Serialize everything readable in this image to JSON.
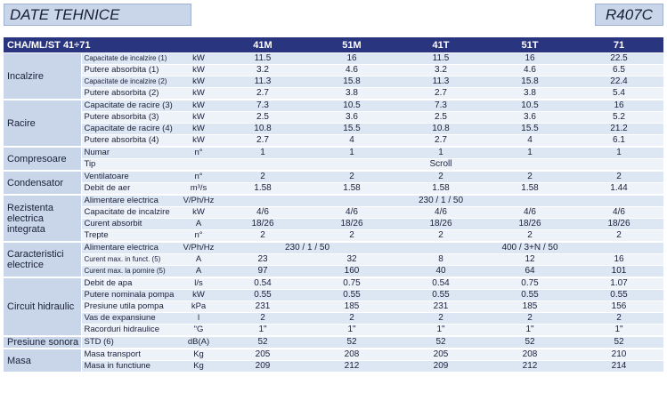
{
  "header": {
    "title": "DATE TEHNICE",
    "refrigerant": "R407C"
  },
  "table": {
    "model_label": "CHA/ML/ST 41÷71",
    "columns": [
      "41M",
      "51M",
      "41T",
      "51T",
      "71"
    ],
    "groups": [
      {
        "name": "Incalzire",
        "rows": [
          {
            "param": "Capacitate de incalzire (1)",
            "small": true,
            "unit": "kW",
            "values": [
              "11.5",
              "16",
              "11.5",
              "16",
              "22.5"
            ]
          },
          {
            "param": "Putere absorbita (1)",
            "unit": "kW",
            "values": [
              "3.2",
              "4.6",
              "3.2",
              "4.6",
              "6.5"
            ]
          },
          {
            "param": "Capacitate de incalzire (2)",
            "small": true,
            "unit": "kW",
            "values": [
              "11.3",
              "15.8",
              "11.3",
              "15.8",
              "22.4"
            ]
          },
          {
            "param": "Putere absorbita (2)",
            "unit": "kW",
            "values": [
              "2.7",
              "3.8",
              "2.7",
              "3.8",
              "5.4"
            ]
          }
        ]
      },
      {
        "name": "Racire",
        "rows": [
          {
            "param": "Capacitate de racire (3)",
            "unit": "kW",
            "values": [
              "7.3",
              "10.5",
              "7.3",
              "10.5",
              "16"
            ]
          },
          {
            "param": "Putere absorbita (3)",
            "unit": "kW",
            "values": [
              "2.5",
              "3.6",
              "2.5",
              "3.6",
              "5.2"
            ]
          },
          {
            "param": "Capacitate de racire (4)",
            "unit": "kW",
            "values": [
              "10.8",
              "15.5",
              "10.8",
              "15.5",
              "21.2"
            ]
          },
          {
            "param": "Putere absorbita (4)",
            "unit": "kW",
            "values": [
              "2.7",
              "4",
              "2.7",
              "4",
              "6.1"
            ]
          }
        ]
      },
      {
        "name": "Compresoare",
        "rows": [
          {
            "param": "Numar",
            "unit": "n°",
            "values": [
              "1",
              "1",
              "1",
              "1",
              "1"
            ]
          },
          {
            "param": "Tip",
            "unit": "",
            "spans": [
              {
                "text": "Scroll",
                "colspan": 5
              }
            ]
          }
        ]
      },
      {
        "name": "Condensator",
        "rows": [
          {
            "param": "Ventilatoare",
            "unit": "n°",
            "values": [
              "2",
              "2",
              "2",
              "2",
              "2"
            ]
          },
          {
            "param": "Debit de aer",
            "unit": "m³/s",
            "values": [
              "1.58",
              "1.58",
              "1.58",
              "1.58",
              "1.44"
            ]
          }
        ]
      },
      {
        "name": "Rezistenta electrica integrata",
        "rows": [
          {
            "param": "Alimentare electrica",
            "unit": "V/Ph/Hz",
            "spans": [
              {
                "text": "230 / 1 / 50",
                "colspan": 5
              }
            ]
          },
          {
            "param": "Capacitate de incalzire",
            "unit": "kW",
            "values": [
              "4/6",
              "4/6",
              "4/6",
              "4/6",
              "4/6"
            ]
          },
          {
            "param": "Curent absorbit",
            "unit": "A",
            "values": [
              "18/26",
              "18/26",
              "18/26",
              "18/26",
              "18/26"
            ]
          },
          {
            "param": "Trepte",
            "unit": "n°",
            "values": [
              "2",
              "2",
              "2",
              "2",
              "2"
            ]
          }
        ]
      },
      {
        "name": "Caracteristici electrice",
        "rows": [
          {
            "param": "Alimentare electrica",
            "unit": "V/Ph/Hz",
            "spans": [
              {
                "text": "230 / 1 / 50",
                "colspan": 2
              },
              {
                "text": "400 / 3+N / 50",
                "colspan": 3
              }
            ]
          },
          {
            "param": "Curent max. in funct. (5)",
            "small": true,
            "unit": "A",
            "values": [
              "23",
              "32",
              "8",
              "12",
              "16"
            ]
          },
          {
            "param": "Curent max. la pornire (5)",
            "small": true,
            "unit": "A",
            "values": [
              "97",
              "160",
              "40",
              "64",
              "101"
            ]
          }
        ]
      },
      {
        "name": "Circuit hidraulic",
        "rows": [
          {
            "param": "Debit de apa",
            "unit": "l/s",
            "values": [
              "0.54",
              "0.75",
              "0.54",
              "0.75",
              "1.07"
            ]
          },
          {
            "param": "Putere nominala pompa",
            "unit": "kW",
            "values": [
              "0.55",
              "0.55",
              "0.55",
              "0.55",
              "0.55"
            ]
          },
          {
            "param": "Presiune utila pompa",
            "unit": "kPa",
            "values": [
              "231",
              "185",
              "231",
              "185",
              "156"
            ]
          },
          {
            "param": "Vas de expansiune",
            "unit": "l",
            "values": [
              "2",
              "2",
              "2",
              "2",
              "2"
            ]
          },
          {
            "param": "Racorduri hidraulice",
            "unit": "\"G",
            "values": [
              "1\"",
              "1\"",
              "1\"",
              "1\"",
              "1\""
            ]
          }
        ]
      },
      {
        "name": "Presiune sonora",
        "rows": [
          {
            "param": "STD (6)",
            "unit": "dB(A)",
            "values": [
              "52",
              "52",
              "52",
              "52",
              "52"
            ]
          }
        ]
      },
      {
        "name": "Masa",
        "rows": [
          {
            "param": "Masa transport",
            "unit": "Kg",
            "values": [
              "205",
              "208",
              "205",
              "208",
              "210"
            ]
          },
          {
            "param": "Masa in functiune",
            "unit": "Kg",
            "values": [
              "209",
              "212",
              "209",
              "212",
              "214"
            ]
          }
        ]
      }
    ]
  }
}
